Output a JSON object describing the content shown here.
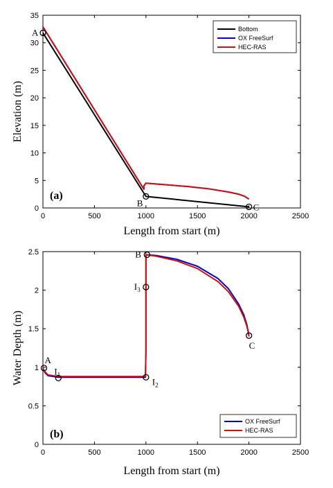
{
  "chart_data": [
    {
      "type": "line",
      "panel_label": "(a)",
      "xlabel": "Length from start (m)",
      "ylabel": "Elevation (m)",
      "xlim": [
        0,
        2500
      ],
      "ylim": [
        0,
        35
      ],
      "xticks": [
        0,
        500,
        1000,
        1500,
        2000,
        2500
      ],
      "yticks": [
        0,
        5,
        10,
        15,
        20,
        25,
        30,
        35
      ],
      "grid": false,
      "legend_position": "top-right",
      "series": [
        {
          "name": "Bottom",
          "color": "#000000",
          "x": [
            0,
            1000,
            2000
          ],
          "y": [
            31.8,
            2.1,
            0.2
          ]
        },
        {
          "name": "OX FreeSurf",
          "color": "#0000cc",
          "x": [
            0,
            980,
            980,
            1000,
            1200,
            1400,
            1600,
            1800,
            1900,
            1960,
            2000
          ],
          "y": [
            32.9,
            3.4,
            4.0,
            4.5,
            4.2,
            3.9,
            3.5,
            2.9,
            2.5,
            2.1,
            1.6
          ]
        },
        {
          "name": "HEC-RAS",
          "color": "#cc1111",
          "x": [
            0,
            980,
            980,
            1000,
            1200,
            1400,
            1600,
            1800,
            1900,
            1960,
            2000
          ],
          "y": [
            32.9,
            3.4,
            4.0,
            4.5,
            4.2,
            3.9,
            3.5,
            2.9,
            2.5,
            2.1,
            1.6
          ]
        }
      ],
      "points": [
        {
          "label": "A",
          "x": 0,
          "y": 31.8
        },
        {
          "label": "B",
          "x": 1000,
          "y": 2.1
        },
        {
          "label": "C",
          "x": 2000,
          "y": 0.2
        }
      ]
    },
    {
      "type": "line",
      "panel_label": "(b)",
      "xlabel": "Length from start (m)",
      "ylabel": "Water Depth (m)",
      "xlim": [
        0,
        2500
      ],
      "ylim": [
        0,
        2.5
      ],
      "xticks": [
        0,
        500,
        1000,
        1500,
        2000,
        2500
      ],
      "yticks": [
        0,
        0.5,
        1,
        1.5,
        2,
        2.5
      ],
      "grid": false,
      "legend_position": "bottom-right",
      "series": [
        {
          "name": "OX FreeSurf",
          "color": "#0000cc",
          "x": [
            0,
            20,
            50,
            100,
            150,
            400,
            700,
            995,
            1000,
            1000,
            1100,
            1300,
            1500,
            1700,
            1800,
            1900,
            1950,
            1980,
            1995,
            2000
          ],
          "y": [
            0.99,
            0.93,
            0.89,
            0.88,
            0.87,
            0.87,
            0.87,
            0.87,
            1.2,
            2.46,
            2.45,
            2.4,
            2.31,
            2.15,
            2.02,
            1.82,
            1.68,
            1.55,
            1.45,
            1.4
          ]
        },
        {
          "name": "HEC-RAS",
          "color": "#cc1111",
          "x": [
            0,
            20,
            50,
            100,
            150,
            400,
            700,
            995,
            1000,
            1000,
            1100,
            1300,
            1500,
            1700,
            1800,
            1900,
            1950,
            1980,
            1995,
            2000
          ],
          "y": [
            0.99,
            0.94,
            0.9,
            0.89,
            0.88,
            0.88,
            0.88,
            0.88,
            1.2,
            2.46,
            2.44,
            2.38,
            2.28,
            2.11,
            1.98,
            1.79,
            1.65,
            1.53,
            1.44,
            1.4
          ]
        }
      ],
      "points": [
        {
          "label": "A",
          "x": 10,
          "y": 0.99
        },
        {
          "label": "I1",
          "label_main": "I",
          "label_sub": "1",
          "x": 150,
          "y": 0.86
        },
        {
          "label": "I2",
          "label_main": "I",
          "label_sub": "2",
          "x": 1000,
          "y": 0.87
        },
        {
          "label": "I3",
          "label_main": "I",
          "label_sub": "3",
          "x": 1000,
          "y": 2.04
        },
        {
          "label": "B",
          "x": 1010,
          "y": 2.46
        },
        {
          "label": "C",
          "x": 2000,
          "y": 1.41
        }
      ]
    }
  ]
}
